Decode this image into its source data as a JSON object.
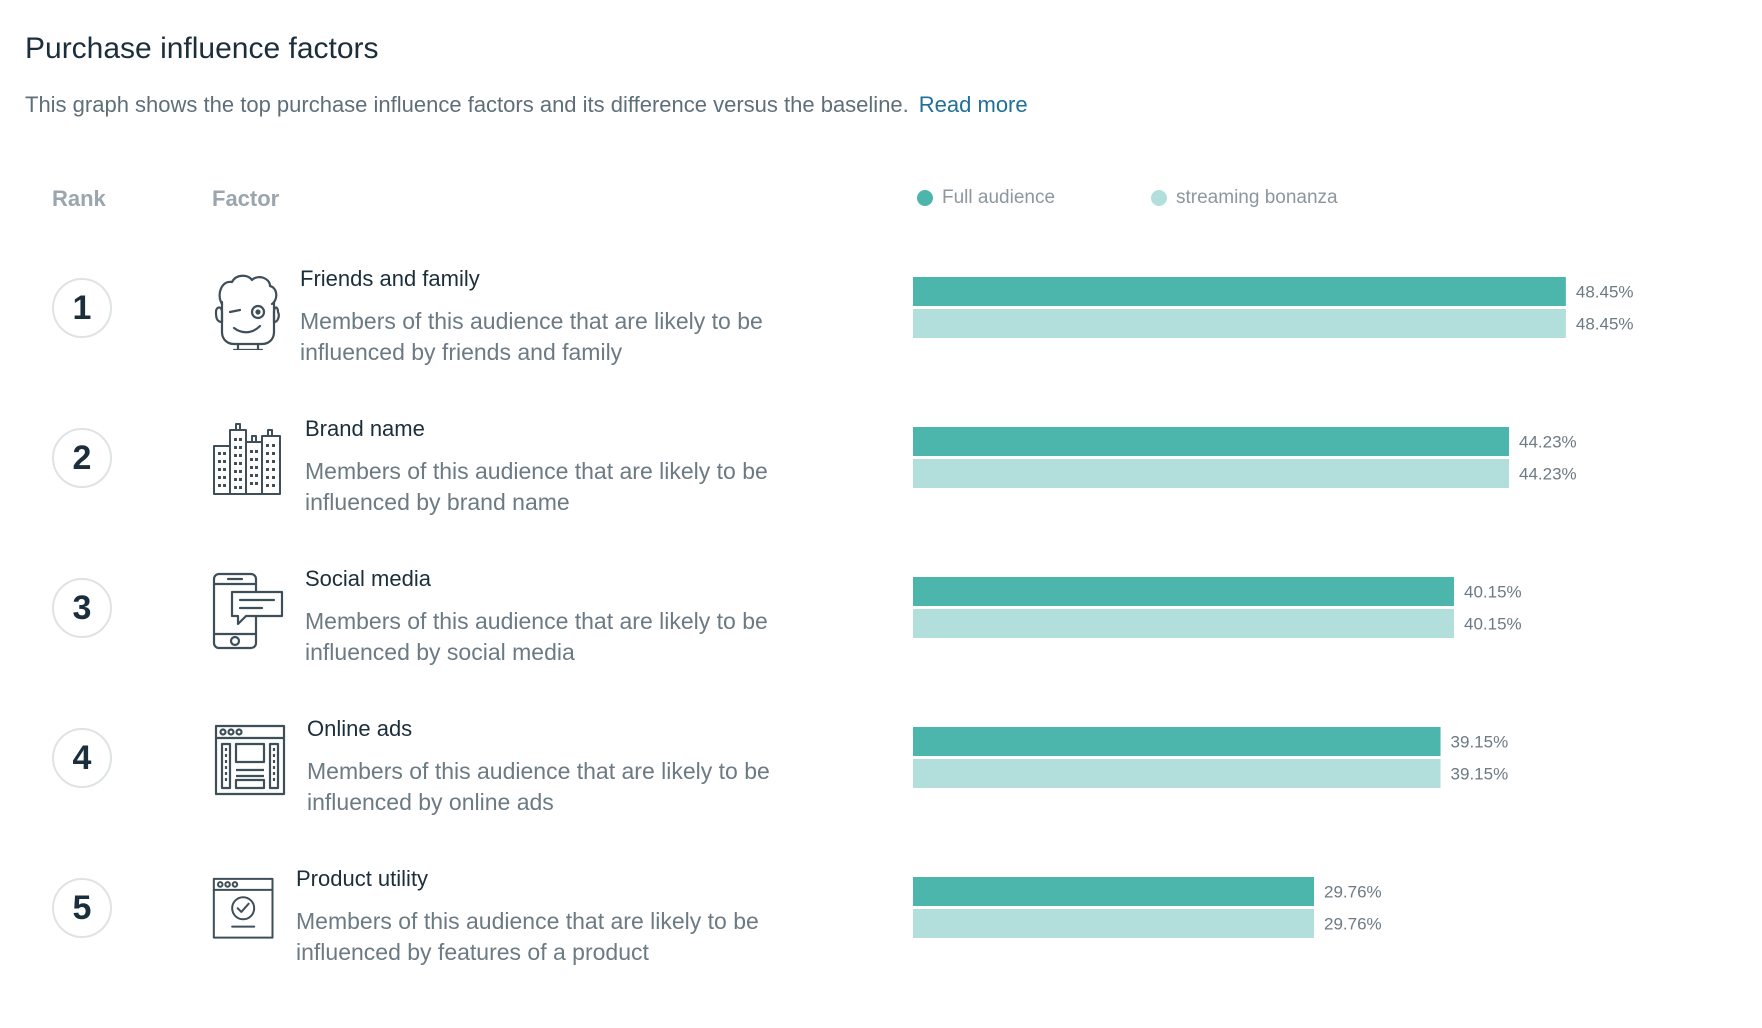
{
  "header": {
    "title": "Purchase influence factors",
    "description": "This graph shows the top purchase influence factors and its difference versus the baseline.",
    "read_more": "Read more"
  },
  "columns": {
    "rank": "Rank",
    "factor": "Factor"
  },
  "colors": {
    "full_audience": "#4db6ac",
    "segment": "#b2dfdb"
  },
  "chart_data": {
    "type": "bar",
    "orientation": "horizontal",
    "legend": {
      "placement": "top",
      "entries": [
        "Full audience",
        "streaming bonanza"
      ]
    },
    "xlim": [
      0,
      52
    ],
    "grid": false,
    "categories": [
      "Friends and family",
      "Brand name",
      "Social media",
      "Online ads",
      "Product utility"
    ],
    "series": [
      {
        "name": "Full audience",
        "values": [
          48.45,
          44.23,
          40.15,
          39.15,
          29.76
        ]
      },
      {
        "name": "streaming bonanza",
        "values": [
          48.45,
          44.23,
          40.15,
          39.15,
          29.76
        ]
      }
    ],
    "value_labels": [
      [
        "48.45%",
        "48.45%"
      ],
      [
        "44.23%",
        "44.23%"
      ],
      [
        "40.15%",
        "40.15%"
      ],
      [
        "39.15%",
        "39.15%"
      ],
      [
        "29.76%",
        "29.76%"
      ]
    ]
  },
  "rows": [
    {
      "rank": "1",
      "icon": "friends-family-face-icon",
      "name": "Friends and family",
      "description": "Members of this audience that are likely to be influenced by friends and family"
    },
    {
      "rank": "2",
      "icon": "buildings-icon",
      "name": "Brand name",
      "description": "Members of this audience that are likely to be influenced by brand name"
    },
    {
      "rank": "3",
      "icon": "phone-chat-icon",
      "name": "Social media",
      "description": "Members of this audience that are likely to be influenced by social media"
    },
    {
      "rank": "4",
      "icon": "browser-ads-icon",
      "name": "Online ads",
      "description": "Members of this audience that are likely to be influenced by online ads"
    },
    {
      "rank": "5",
      "icon": "browser-checkmark-icon",
      "name": "Product utility",
      "description": "Members of this audience that are likely to be influenced by features of a product"
    }
  ]
}
